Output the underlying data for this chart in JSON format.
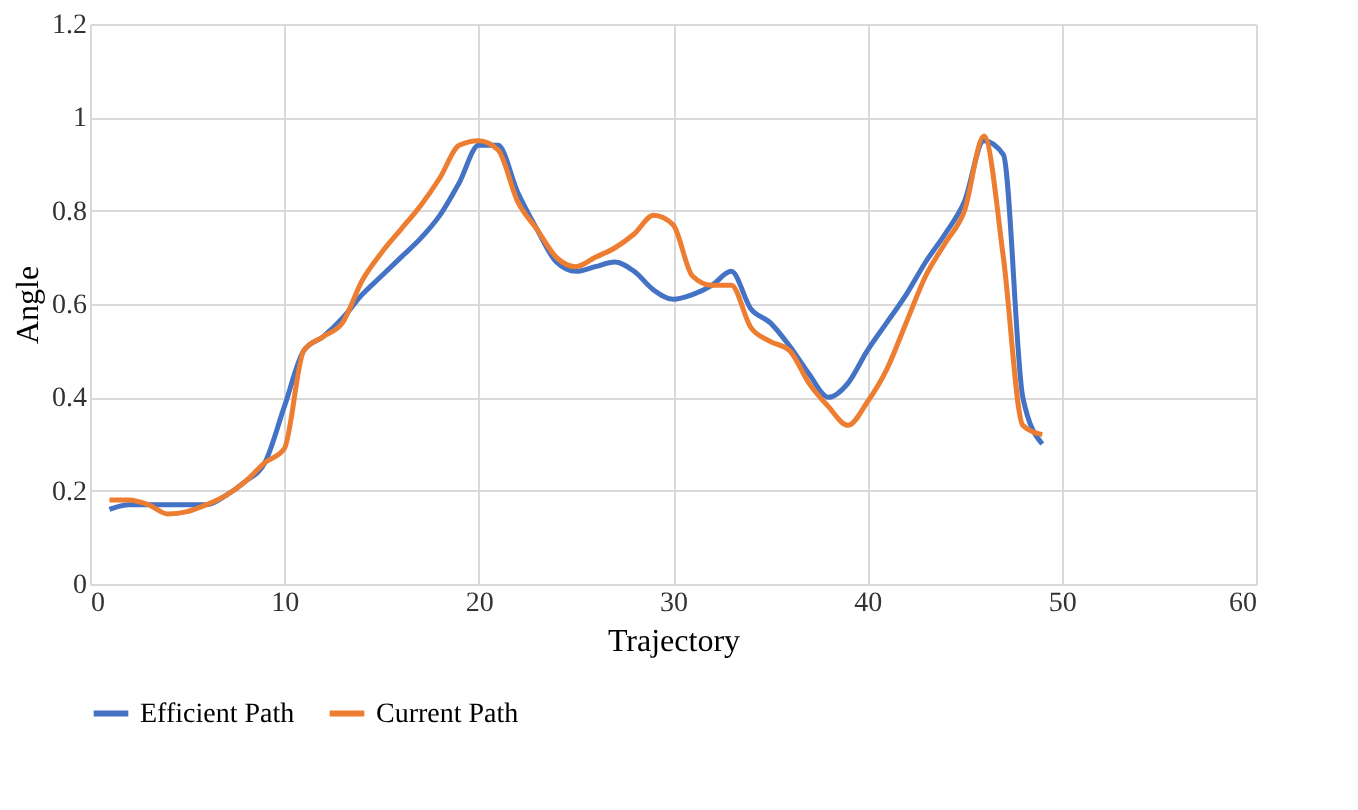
{
  "chart_data": {
    "type": "line",
    "xlabel": "Trajectory",
    "ylabel": "Angle",
    "x": [
      1,
      2,
      3,
      4,
      5,
      6,
      7,
      8,
      9,
      10,
      11,
      12,
      13,
      14,
      15,
      16,
      17,
      18,
      19,
      20,
      21,
      22,
      23,
      24,
      25,
      26,
      27,
      28,
      29,
      30,
      31,
      32,
      33,
      34,
      35,
      36,
      37,
      38,
      39,
      40,
      41,
      42,
      43,
      44,
      45,
      46,
      47,
      48,
      49
    ],
    "series": [
      {
        "name": "Efficient Path",
        "color": "#4472c4",
        "values": [
          0.16,
          0.17,
          0.17,
          0.17,
          0.17,
          0.17,
          0.19,
          0.22,
          0.26,
          0.38,
          0.5,
          0.53,
          0.57,
          0.62,
          0.66,
          0.7,
          0.74,
          0.79,
          0.86,
          0.94,
          0.94,
          0.84,
          0.76,
          0.69,
          0.67,
          0.68,
          0.69,
          0.67,
          0.63,
          0.61,
          0.62,
          0.64,
          0.67,
          0.59,
          0.56,
          0.51,
          0.45,
          0.4,
          0.43,
          0.5,
          0.56,
          0.62,
          0.69,
          0.75,
          0.82,
          0.95,
          0.92,
          0.4,
          0.3
        ]
      },
      {
        "name": "Current Path",
        "color": "#ed7d31",
        "values": [
          0.18,
          0.18,
          0.17,
          0.15,
          0.155,
          0.17,
          0.19,
          0.22,
          0.26,
          0.29,
          0.5,
          0.53,
          0.56,
          0.65,
          0.71,
          0.76,
          0.81,
          0.87,
          0.94,
          0.95,
          0.93,
          0.82,
          0.76,
          0.7,
          0.68,
          0.7,
          0.72,
          0.75,
          0.79,
          0.77,
          0.66,
          0.64,
          0.64,
          0.55,
          0.52,
          0.5,
          0.43,
          0.38,
          0.34,
          0.39,
          0.46,
          0.56,
          0.66,
          0.73,
          0.8,
          0.96,
          0.7,
          0.34,
          0.32
        ]
      }
    ],
    "xlim": [
      0,
      60
    ],
    "xticks": [
      0,
      10,
      20,
      30,
      40,
      50,
      60
    ],
    "ylim": [
      0,
      1.2
    ],
    "yticks": [
      0,
      0.2,
      0.4,
      0.6,
      0.8,
      1,
      1.2
    ],
    "grid": true,
    "legend": "bottom",
    "marker": "none",
    "line_style": "solid"
  }
}
